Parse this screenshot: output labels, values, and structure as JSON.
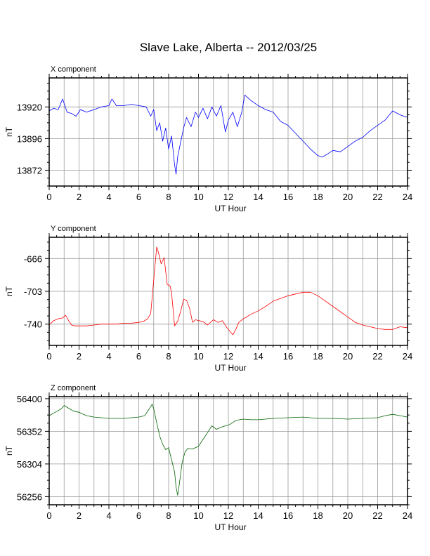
{
  "title": "Slave Lake, Alberta -- 2012/03/25",
  "chart_data": [
    {
      "type": "line",
      "panel_label": "X component",
      "xlabel": "UT Hour",
      "ylabel": "nT",
      "xlim": [
        0,
        24
      ],
      "ylim": [
        13860,
        13942
      ],
      "xticks": [
        0,
        2,
        4,
        6,
        8,
        10,
        12,
        14,
        16,
        18,
        20,
        22,
        24
      ],
      "yticks": [
        13872,
        13896,
        13920
      ],
      "grid": true,
      "color": "#0000ff",
      "series": [
        {
          "x": [
            0,
            0.3,
            0.6,
            0.9,
            1.2,
            1.5,
            1.8,
            2.1,
            2.5,
            3,
            3.5,
            4,
            4.2,
            4.5,
            5,
            5.5,
            6,
            6.5,
            6.8,
            7,
            7.2,
            7.4,
            7.6,
            7.8,
            8,
            8.2,
            8.4,
            8.5,
            8.6,
            8.8,
            9,
            9.2,
            9.5,
            9.8,
            10,
            10.3,
            10.6,
            10.9,
            11.2,
            11.5,
            11.8,
            12,
            12.3,
            12.6,
            12.9,
            13.1,
            13.5,
            14,
            14.5,
            15,
            15.5,
            16,
            16.5,
            17,
            17.5,
            18,
            18.3,
            18.6,
            19,
            19.5,
            20,
            20.5,
            21,
            21.5,
            22,
            22.5,
            23,
            23.5,
            24
          ],
          "y": [
            13917,
            13919,
            13918,
            13926,
            13916,
            13915,
            13913,
            13918,
            13916,
            13918,
            13920,
            13921,
            13926,
            13921,
            13921,
            13922,
            13921,
            13920,
            13913,
            13918,
            13902,
            13908,
            13894,
            13904,
            13888,
            13898,
            13876,
            13869,
            13882,
            13893,
            13904,
            13912,
            13905,
            13916,
            13912,
            13919,
            13911,
            13920,
            13913,
            13921,
            13901,
            13910,
            13916,
            13905,
            13916,
            13929,
            13925,
            13921,
            13918,
            13916,
            13909,
            13906,
            13900,
            13894,
            13888,
            13883,
            13882,
            13884,
            13887,
            13886,
            13890,
            13894,
            13897,
            13902,
            13906,
            13910,
            13917,
            13914,
            13912
          ]
        }
      ]
    },
    {
      "type": "line",
      "panel_label": "Y component",
      "xlabel": "UT Hour",
      "ylabel": "nT",
      "xlim": [
        0,
        24
      ],
      "ylim": [
        -764,
        -642
      ],
      "xticks": [
        0,
        2,
        4,
        6,
        8,
        10,
        12,
        14,
        16,
        18,
        20,
        22,
        24
      ],
      "yticks": [
        -666,
        -703,
        -740
      ],
      "grid": true,
      "color": "#ff0000",
      "series": [
        {
          "x": [
            0,
            0.3,
            0.6,
            0.9,
            1.1,
            1.3,
            1.5,
            1.7,
            2,
            2.5,
            3,
            3.5,
            4,
            4.5,
            5,
            5.5,
            6,
            6.3,
            6.6,
            6.8,
            7,
            7.2,
            7.3,
            7.5,
            7.7,
            7.9,
            8.1,
            8.2,
            8.4,
            8.6,
            8.8,
            9,
            9.2,
            9.4,
            9.6,
            9.8,
            10,
            10.3,
            10.6,
            11,
            11.3,
            11.6,
            11.9,
            12.1,
            12.3,
            12.5,
            12.7,
            13,
            13.5,
            14,
            14.5,
            15,
            15.5,
            16,
            16.5,
            17,
            17.5,
            18,
            18.5,
            19,
            19.5,
            20,
            20.5,
            21,
            21.5,
            22,
            22.5,
            23,
            23.5,
            24
          ],
          "y": [
            -741,
            -736,
            -734,
            -733,
            -730,
            -736,
            -741,
            -742,
            -742,
            -742,
            -741,
            -740,
            -740,
            -740,
            -739,
            -739,
            -738,
            -737,
            -734,
            -728,
            -690,
            -653,
            -658,
            -672,
            -665,
            -695,
            -697,
            -705,
            -742,
            -737,
            -726,
            -712,
            -713,
            -722,
            -738,
            -735,
            -736,
            -737,
            -741,
            -735,
            -738,
            -736,
            -744,
            -748,
            -752,
            -746,
            -738,
            -734,
            -729,
            -725,
            -720,
            -714,
            -711,
            -708,
            -706,
            -704,
            -704,
            -708,
            -714,
            -720,
            -726,
            -732,
            -738,
            -741,
            -743,
            -745,
            -746,
            -746,
            -743,
            -744
          ]
        }
      ]
    },
    {
      "type": "line",
      "panel_label": "Z component",
      "xlabel": "UT Hour",
      "ylabel": "nT",
      "xlim": [
        0,
        24
      ],
      "ylim": [
        56244,
        56403
      ],
      "xticks": [
        0,
        2,
        4,
        6,
        8,
        10,
        12,
        14,
        16,
        18,
        20,
        22,
        24
      ],
      "yticks": [
        56256,
        56304,
        56352,
        56400
      ],
      "grid": true,
      "color": "#006400",
      "series": [
        {
          "x": [
            0,
            0.4,
            0.8,
            1,
            1.3,
            1.6,
            2,
            2.5,
            3,
            3.5,
            4,
            4.5,
            5,
            5.5,
            6,
            6.4,
            6.7,
            6.9,
            7,
            7.2,
            7.4,
            7.6,
            7.8,
            8,
            8.2,
            8.4,
            8.5,
            8.6,
            8.7,
            8.9,
            9.1,
            9.3,
            9.6,
            10,
            10.3,
            10.6,
            10.9,
            11.2,
            11.5,
            11.8,
            12.1,
            12.5,
            13,
            13.5,
            14,
            15,
            16,
            17,
            18,
            19,
            20,
            21,
            22,
            22.5,
            23,
            23.5,
            24
          ],
          "y": [
            56375,
            56380,
            56385,
            56390,
            56386,
            56382,
            56380,
            56375,
            56373,
            56372,
            56371,
            56371,
            56371,
            56372,
            56373,
            56375,
            56385,
            56392,
            56385,
            56365,
            56345,
            56333,
            56325,
            56328,
            56310,
            56292,
            56270,
            56258,
            56272,
            56305,
            56322,
            56327,
            56326,
            56330,
            56340,
            56350,
            56360,
            56355,
            56358,
            56360,
            56362,
            56368,
            56370,
            56369,
            56369,
            56371,
            56372,
            56373,
            56371,
            56371,
            56370,
            56371,
            56372,
            56375,
            56377,
            56375,
            56373
          ]
        }
      ]
    }
  ]
}
